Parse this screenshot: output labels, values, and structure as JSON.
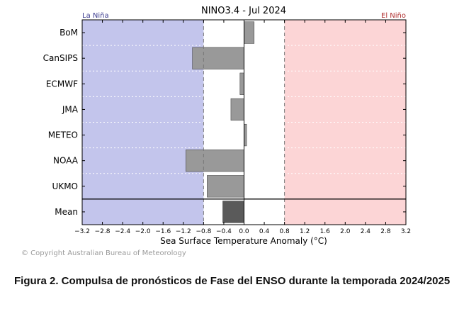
{
  "chart_data": {
    "type": "bar",
    "orientation": "horizontal",
    "title": "NINO3.4 - Jul 2024",
    "xlabel": "Sea Surface Temperature Anomaly (°C)",
    "ylabel": "",
    "xlim": [
      -3.2,
      3.2
    ],
    "xticks": [
      "−3.2",
      "−2.8",
      "−2.4",
      "−2.0",
      "−1.6",
      "−1.2",
      "−0.8",
      "−0.4",
      "0.0",
      "0.4",
      "0.8",
      "1.2",
      "1.6",
      "2.0",
      "2.4",
      "2.8",
      "3.2"
    ],
    "categories": [
      "BoM",
      "CanSIPS",
      "ECMWF",
      "JMA",
      "METEO",
      "NOAA",
      "UKMO",
      "Mean"
    ],
    "values": [
      0.2,
      -1.02,
      -0.08,
      -0.26,
      0.05,
      -1.15,
      -0.73,
      -0.42
    ],
    "thresholds": [
      -0.8,
      0.8
    ],
    "region_labels": {
      "la_nina": "La Niña",
      "el_nino": "El Niño"
    },
    "colors": {
      "la_nina_fill": "#c3c5ec",
      "el_nino_fill": "#fcd5d6",
      "bar": "#999999",
      "mean_bar": "#5a5a5a",
      "la_nina_text": "#3b3b8f",
      "el_nino_text": "#b03030"
    }
  },
  "copyright": "© Copyright Australian Bureau of Meteorology",
  "caption": "Figura 2. Compulsa de pronósticos de Fase del ENSO durante la temporada 2024/2025"
}
